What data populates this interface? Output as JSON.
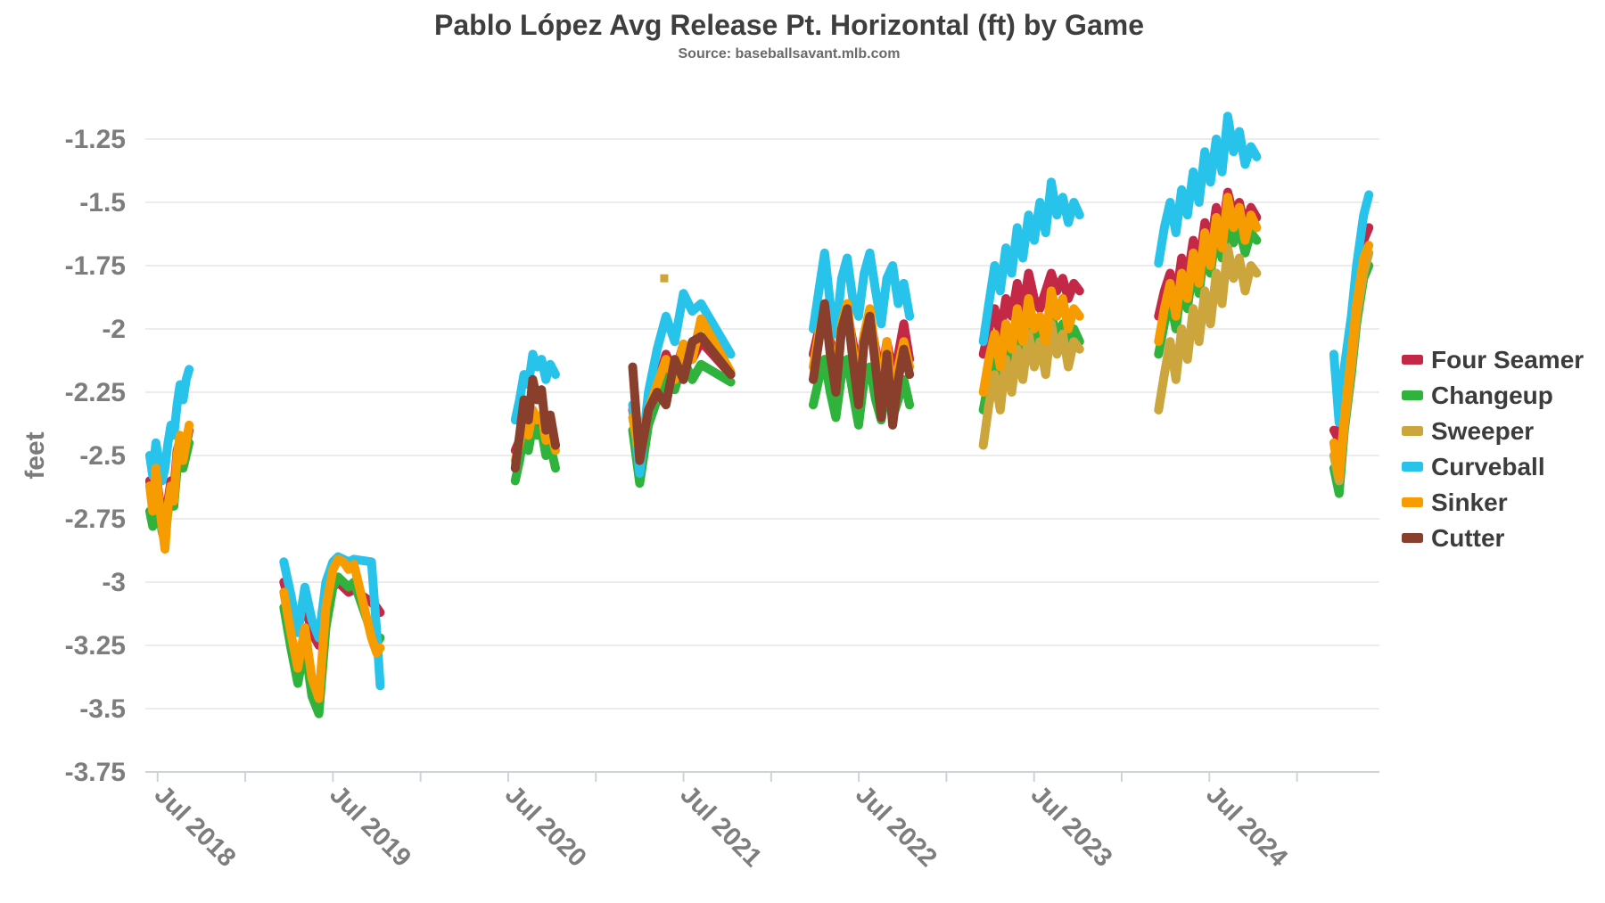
{
  "chart_data": {
    "type": "line",
    "title": "Pablo López Avg Release Pt. Horizontal (ft) by Game",
    "subtitle": "Source: baseballsavant.mlb.com",
    "ylabel": "feet",
    "grid": true,
    "legend_position": "right",
    "colors": {
      "grid_line": "#e9e9e9",
      "axis_line": "#ccd4d8",
      "tick_label": "#7d7d7d",
      "title_text": "#3e3e3e",
      "subtitle_text": "#6a6a6a",
      "legend_text": "#3c3c3c"
    },
    "y_axis": {
      "tick_values": [
        -1.25,
        -1.5,
        -1.75,
        -2,
        -2.25,
        -2.5,
        -2.75,
        -3,
        -3.25,
        -3.5,
        -3.75
      ],
      "tick_labels": [
        "-1.25",
        "-1.5",
        "-1.75",
        "-2",
        "-2.25",
        "-2.5",
        "-2.75",
        "-3",
        "-3.25",
        "-3.5",
        "-3.75"
      ],
      "range": [
        -3.75,
        -1.25
      ]
    },
    "x_axis": {
      "range_years": [
        2018.43,
        2025.47
      ],
      "minor_tick_years": [
        2018.5,
        2019.0,
        2019.5,
        2020.0,
        2020.5,
        2021.0,
        2021.5,
        2022.0,
        2022.5,
        2023.0,
        2023.5,
        2024.0,
        2024.5,
        2025.0
      ],
      "labels": [
        {
          "year": 2018.5,
          "text": "Jul 2018"
        },
        {
          "year": 2019.5,
          "text": "Jul 2019"
        },
        {
          "year": 2020.5,
          "text": "Jul 2020"
        },
        {
          "year": 2021.5,
          "text": "Jul 2021"
        },
        {
          "year": 2022.5,
          "text": "Jul 2022"
        },
        {
          "year": 2023.5,
          "text": "Jul 2023"
        },
        {
          "year": 2024.5,
          "text": "Jul 2024"
        }
      ]
    },
    "x_by_season": {
      "2018": [
        2018.455,
        2018.472,
        2018.49,
        2018.508,
        2018.525,
        2018.542,
        2018.559,
        2018.576,
        2018.593,
        2018.611,
        2018.628,
        2018.645,
        2018.663,
        2018.68
      ],
      "2019": [
        2019.22,
        2019.26,
        2019.3,
        2019.34,
        2019.38,
        2019.42,
        2019.46,
        2019.5,
        2019.53,
        2019.56,
        2019.59,
        2019.62,
        2019.72,
        2019.75,
        2019.77
      ],
      "2020": [
        2020.54,
        2020.565,
        2020.59,
        2020.615,
        2020.64,
        2020.665,
        2020.69,
        2020.715,
        2020.74,
        2020.77
      ],
      "2021": [
        2021.21,
        2021.25,
        2021.3,
        2021.35,
        2021.4,
        2021.45,
        2021.5,
        2021.55,
        2021.6,
        2021.77
      ],
      "2022": [
        2022.24,
        2022.272,
        2022.305,
        2022.337,
        2022.369,
        2022.402,
        2022.434,
        2022.466,
        2022.499,
        2022.531,
        2022.563,
        2022.596,
        2022.628,
        2022.66,
        2022.693,
        2022.725,
        2022.757,
        2022.79
      ],
      "2023": [
        2023.21,
        2023.242,
        2023.275,
        2023.307,
        2023.339,
        2023.372,
        2023.404,
        2023.436,
        2023.469,
        2023.501,
        2023.533,
        2023.566,
        2023.598,
        2023.63,
        2023.663,
        2023.695,
        2023.727,
        2023.76
      ],
      "2024": [
        2024.21,
        2024.243,
        2024.276,
        2024.309,
        2024.342,
        2024.375,
        2024.408,
        2024.441,
        2024.474,
        2024.506,
        2024.539,
        2024.572,
        2024.605,
        2024.638,
        2024.671,
        2024.704,
        2024.737,
        2024.77
      ],
      "2025": [
        2025.21,
        2025.24,
        2025.27,
        2025.31,
        2025.34,
        2025.38,
        2025.41
      ]
    },
    "series": [
      {
        "name": "Four Seamer",
        "color": "#C42847",
        "segments": [
          {
            "season": "2018",
            "y": [
              -2.6,
              -2.7,
              -2.56,
              -2.66,
              -2.74,
              -2.8,
              -2.68,
              -2.6,
              -2.64,
              -2.48,
              -2.44,
              -2.5,
              -2.46,
              -2.4
            ]
          },
          {
            "season": "2019",
            "y": [
              -3.0,
              -3.1,
              -3.18,
              -3.08,
              -3.2,
              -3.25,
              -3.1,
              -3.02,
              -3.0,
              -3.02,
              -3.04,
              -3.03,
              -3.08,
              -3.1,
              -3.12
            ]
          },
          {
            "season": "2020",
            "y": [
              -2.48,
              -2.44,
              -2.38,
              -2.42,
              -2.35,
              -2.38,
              -2.37,
              -2.43,
              -2.41,
              -2.46
            ]
          },
          {
            "season": "2021",
            "y": [
              -2.32,
              -2.48,
              -2.3,
              -2.22,
              -2.1,
              -2.18,
              -2.06,
              -2.12,
              -2.05,
              -2.18
            ]
          },
          {
            "season": "2022",
            "y": [
              -2.1,
              -2.0,
              -1.95,
              -2.05,
              -2.15,
              -2.0,
              -1.93,
              -2.05,
              -2.18,
              -2.02,
              -1.95,
              -2.08,
              -2.2,
              -2.05,
              -2.17,
              -2.1,
              -1.98,
              -2.12
            ]
          },
          {
            "season": "2023",
            "y": [
              -2.1,
              -2.0,
              -1.92,
              -2.02,
              -1.88,
              -1.95,
              -1.82,
              -1.92,
              -1.78,
              -1.88,
              -1.92,
              -1.85,
              -1.78,
              -1.85,
              -1.8,
              -1.88,
              -1.82,
              -1.85
            ]
          },
          {
            "season": "2024",
            "y": [
              -1.95,
              -1.85,
              -1.78,
              -1.88,
              -1.72,
              -1.8,
              -1.65,
              -1.75,
              -1.58,
              -1.68,
              -1.52,
              -1.62,
              -1.46,
              -1.55,
              -1.5,
              -1.6,
              -1.52,
              -1.56
            ]
          },
          {
            "season": "2025",
            "y": [
              -2.4,
              -2.44,
              -2.2,
              -2.0,
              -1.82,
              -1.65,
              -1.6
            ]
          }
        ]
      },
      {
        "name": "Changeup",
        "color": "#2FB33D",
        "segments": [
          {
            "season": "2018",
            "y": [
              -2.72,
              -2.78,
              -2.62,
              -2.7,
              -2.8,
              -2.84,
              -2.72,
              -2.66,
              -2.7,
              -2.55,
              -2.48,
              -2.55,
              -2.5,
              -2.45
            ]
          },
          {
            "season": "2019",
            "y": [
              -3.1,
              -3.26,
              -3.4,
              -3.25,
              -3.45,
              -3.52,
              -3.18,
              -3.02,
              -2.98,
              -3.0,
              -3.02,
              -3.0,
              -3.2,
              -3.24,
              -3.22
            ]
          },
          {
            "season": "2020",
            "y": [
              -2.6,
              -2.52,
              -2.42,
              -2.48,
              -2.38,
              -2.42,
              -2.4,
              -2.5,
              -2.46,
              -2.55
            ]
          },
          {
            "season": "2021",
            "y": [
              -2.4,
              -2.61,
              -2.38,
              -2.28,
              -2.16,
              -2.24,
              -2.12,
              -2.2,
              -2.14,
              -2.21
            ]
          },
          {
            "season": "2022",
            "y": [
              -2.3,
              -2.2,
              -2.12,
              -2.25,
              -2.35,
              -2.18,
              -2.12,
              -2.25,
              -2.38,
              -2.2,
              -2.15,
              -2.28,
              -2.36,
              -2.22,
              -2.35,
              -2.28,
              -2.2,
              -2.3
            ]
          },
          {
            "season": "2023",
            "y": [
              -2.32,
              -2.2,
              -2.1,
              -2.22,
              -2.05,
              -2.15,
              -2.0,
              -2.12,
              -1.95,
              -2.08,
              -2.0,
              -2.1,
              -1.93,
              -2.05,
              -1.98,
              -2.1,
              -2.0,
              -2.05
            ]
          },
          {
            "season": "2024",
            "y": [
              -2.1,
              -1.98,
              -1.88,
              -2.0,
              -1.82,
              -1.92,
              -1.75,
              -1.86,
              -1.68,
              -1.78,
              -1.62,
              -1.72,
              -1.56,
              -1.66,
              -1.6,
              -1.7,
              -1.62,
              -1.65
            ]
          },
          {
            "season": "2025",
            "y": [
              -2.55,
              -2.65,
              -2.4,
              -2.18,
              -1.98,
              -1.8,
              -1.75
            ]
          }
        ]
      },
      {
        "name": "Sweeper",
        "color": "#CDA53D",
        "segments": [
          {
            "season": "2021",
            "x": [
              2021.39
            ],
            "y": [
              -1.8
            ]
          },
          {
            "season": "2023",
            "y": [
              -2.46,
              -2.3,
              -2.18,
              -2.32,
              -2.12,
              -2.25,
              -2.08,
              -2.2,
              -2.02,
              -2.15,
              -2.05,
              -2.18,
              -1.98,
              -2.1,
              -2.02,
              -2.15,
              -2.05,
              -2.08
            ]
          },
          {
            "season": "2024",
            "y": [
              -2.32,
              -2.18,
              -2.05,
              -2.2,
              -2.0,
              -2.12,
              -1.92,
              -2.05,
              -1.85,
              -1.98,
              -1.78,
              -1.9,
              -1.68,
              -1.8,
              -1.72,
              -1.85,
              -1.75,
              -1.78
            ]
          },
          {
            "season": "2025",
            "y": [
              -2.5,
              -2.6,
              -2.38,
              -2.15,
              -1.95,
              -1.78,
              -1.7
            ]
          }
        ]
      },
      {
        "name": "Curveball",
        "color": "#27C3EA",
        "segments": [
          {
            "season": "2018",
            "y": [
              -2.5,
              -2.58,
              -2.45,
              -2.52,
              -2.6,
              -2.55,
              -2.45,
              -2.38,
              -2.42,
              -2.3,
              -2.22,
              -2.28,
              -2.2,
              -2.16
            ]
          },
          {
            "season": "2019",
            "y": [
              -2.92,
              -3.05,
              -3.2,
              -3.02,
              -3.15,
              -3.22,
              -3.0,
              -2.92,
              -2.9,
              -2.91,
              -2.92,
              -2.91,
              -2.92,
              -3.2,
              -3.41
            ]
          },
          {
            "season": "2020",
            "y": [
              -2.36,
              -2.28,
              -2.18,
              -2.22,
              -2.1,
              -2.15,
              -2.12,
              -2.2,
              -2.14,
              -2.18
            ]
          },
          {
            "season": "2021",
            "y": [
              -2.3,
              -2.57,
              -2.25,
              -2.08,
              -1.95,
              -2.05,
              -1.86,
              -1.93,
              -1.9,
              -2.1
            ]
          },
          {
            "season": "2022",
            "y": [
              -2.0,
              -1.85,
              -1.7,
              -1.9,
              -2.02,
              -1.8,
              -1.72,
              -1.88,
              -1.95,
              -1.78,
              -1.7,
              -1.85,
              -1.98,
              -1.8,
              -1.75,
              -1.9,
              -1.82,
              -1.95
            ]
          },
          {
            "season": "2023",
            "y": [
              -2.05,
              -1.9,
              -1.75,
              -1.85,
              -1.68,
              -1.78,
              -1.6,
              -1.72,
              -1.55,
              -1.65,
              -1.5,
              -1.62,
              -1.42,
              -1.55,
              -1.48,
              -1.58,
              -1.5,
              -1.55
            ]
          },
          {
            "season": "2024",
            "y": [
              -1.74,
              -1.6,
              -1.5,
              -1.62,
              -1.45,
              -1.55,
              -1.38,
              -1.5,
              -1.3,
              -1.42,
              -1.25,
              -1.38,
              -1.16,
              -1.3,
              -1.22,
              -1.35,
              -1.28,
              -1.32
            ]
          },
          {
            "season": "2025",
            "y": [
              -2.1,
              -2.37,
              -2.15,
              -1.95,
              -1.75,
              -1.55,
              -1.47
            ]
          }
        ]
      },
      {
        "name": "Sinker",
        "color": "#F79C00",
        "segments": [
          {
            "season": "2018",
            "y": [
              -2.62,
              -2.72,
              -2.55,
              -2.68,
              -2.78,
              -2.87,
              -2.7,
              -2.62,
              -2.68,
              -2.5,
              -2.42,
              -2.52,
              -2.45,
              -2.38
            ]
          },
          {
            "season": "2019",
            "y": [
              -3.04,
              -3.2,
              -3.34,
              -3.18,
              -3.38,
              -3.46,
              -3.1,
              -2.95,
              -2.91,
              -2.92,
              -2.95,
              -2.93,
              -3.22,
              -3.28,
              -3.26
            ]
          },
          {
            "season": "2020",
            "y": [
              -2.52,
              -2.45,
              -2.36,
              -2.42,
              -2.32,
              -2.36,
              -2.34,
              -2.44,
              -2.4,
              -2.48
            ]
          },
          {
            "season": "2021",
            "y": [
              -2.35,
              -2.5,
              -2.32,
              -2.22,
              -2.12,
              -2.2,
              -2.06,
              -2.12,
              -1.96,
              -2.17
            ]
          },
          {
            "season": "2022",
            "y": [
              -2.15,
              -2.02,
              -1.92,
              -2.08,
              -2.2,
              -1.98,
              -1.9,
              -2.08,
              -2.25,
              -2.02,
              -1.92,
              -2.1,
              -2.28,
              -2.05,
              -2.3,
              -2.15,
              -2.05,
              -2.15
            ]
          },
          {
            "season": "2023",
            "y": [
              -2.25,
              -2.12,
              -2.02,
              -2.15,
              -1.98,
              -2.08,
              -1.92,
              -2.05,
              -1.88,
              -2.0,
              -1.95,
              -2.05,
              -1.85,
              -1.95,
              -1.88,
              -2.0,
              -1.92,
              -1.95
            ]
          },
          {
            "season": "2024",
            "y": [
              -2.05,
              -1.92,
              -1.82,
              -1.95,
              -1.78,
              -1.88,
              -1.7,
              -1.82,
              -1.62,
              -1.75,
              -1.56,
              -1.68,
              -1.48,
              -1.6,
              -1.52,
              -1.65,
              -1.55,
              -1.6
            ]
          },
          {
            "season": "2025",
            "y": [
              -2.45,
              -2.58,
              -2.35,
              -2.1,
              -1.9,
              -1.72,
              -1.67
            ]
          }
        ]
      },
      {
        "name": "Cutter",
        "color": "#8A3F2C",
        "segments": [
          {
            "season": "2020",
            "y": [
              -2.55,
              -2.42,
              -2.28,
              -2.36,
              -2.2,
              -2.28,
              -2.24,
              -2.4,
              -2.34,
              -2.46
            ]
          },
          {
            "season": "2021",
            "y": [
              -2.15,
              -2.52,
              -2.32,
              -2.25,
              -2.3,
              -2.12,
              -2.2,
              -2.05,
              -2.03,
              -2.18
            ]
          },
          {
            "season": "2022",
            "y": [
              -2.2,
              -2.05,
              -1.9,
              -2.1,
              -2.25,
              -2.0,
              -1.92,
              -2.12,
              -2.3,
              -2.05,
              -1.95,
              -2.15,
              -2.35,
              -2.1,
              -2.38,
              -2.2,
              -2.08,
              -2.18
            ]
          }
        ]
      }
    ]
  }
}
